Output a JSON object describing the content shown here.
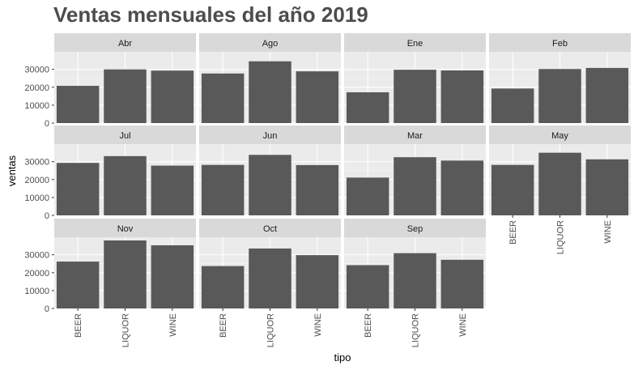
{
  "chart_data": {
    "type": "bar",
    "title": "Ventas mensuales del año 2019",
    "xlabel": "tipo",
    "ylabel": "ventas",
    "categories": [
      "BEER",
      "LIQUOR",
      "WINE"
    ],
    "yticks": [
      0,
      10000,
      20000,
      30000
    ],
    "ylim": [
      0,
      38000
    ],
    "grid": true,
    "legend": "none",
    "colors": {
      "bar": "#595959",
      "panel": "#ebebeb",
      "strip": "#d9d9d9",
      "text": "#4d4d4d",
      "axis_text": "#4d4d4d"
    },
    "panels": [
      {
        "name": "Abr",
        "values": [
          20800,
          30000,
          29300
        ]
      },
      {
        "name": "Ago",
        "values": [
          27700,
          34500,
          28900
        ]
      },
      {
        "name": "Ene",
        "values": [
          17200,
          29800,
          29400
        ]
      },
      {
        "name": "Feb",
        "values": [
          19300,
          30200,
          30800
        ]
      },
      {
        "name": "Jul",
        "values": [
          29300,
          33100,
          27800
        ]
      },
      {
        "name": "Jun",
        "values": [
          28200,
          33800,
          28100
        ]
      },
      {
        "name": "Mar",
        "values": [
          21100,
          32500,
          30600
        ]
      },
      {
        "name": "May",
        "values": [
          28200,
          35000,
          31300
        ]
      },
      {
        "name": "Nov",
        "values": [
          26200,
          38000,
          35300
        ]
      },
      {
        "name": "Oct",
        "values": [
          23700,
          33500,
          29800
        ]
      },
      {
        "name": "Sep",
        "values": [
          24200,
          30900,
          27200
        ]
      }
    ]
  }
}
